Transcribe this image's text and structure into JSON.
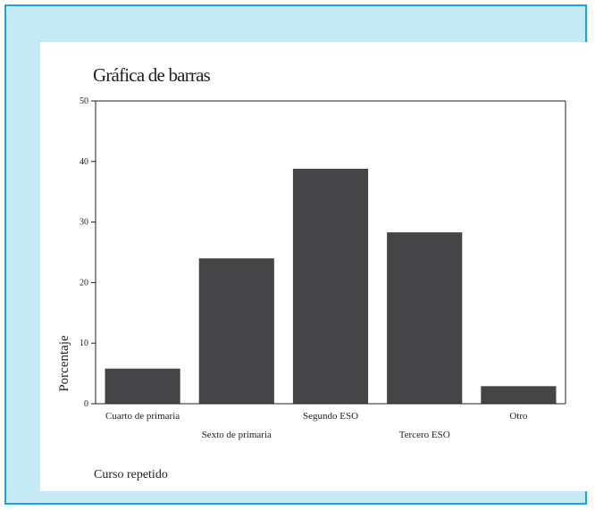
{
  "chart_data": {
    "type": "bar",
    "title": "Gráfica de barras",
    "ylabel": "Porcentaje",
    "xlabel": "Curso repetido",
    "categories": [
      "Cuarto de primaria",
      "Sexto de primaria",
      "Segundo ESO",
      "Tercero ESO",
      "Otro"
    ],
    "values": [
      5.8,
      24.0,
      38.8,
      28.3,
      2.9
    ],
    "ylim": [
      0,
      50
    ],
    "yticks": [
      0,
      10,
      20,
      30,
      40,
      50
    ],
    "bar_color": "#454547",
    "grid": false
  },
  "colors": {
    "frame_background": "#c6e9f6",
    "frame_border": "#1aa3dc"
  }
}
